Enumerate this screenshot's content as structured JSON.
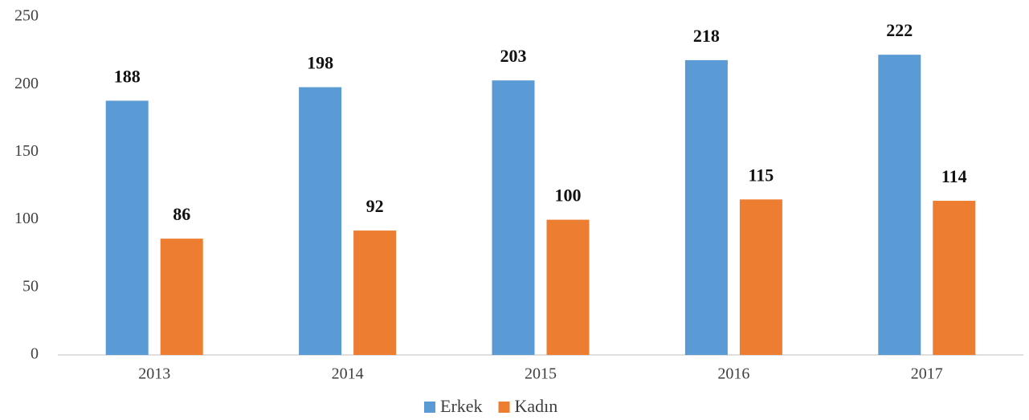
{
  "chart_data": {
    "type": "bar",
    "categories": [
      "2013",
      "2014",
      "2015",
      "2016",
      "2017"
    ],
    "series": [
      {
        "name": "Erkek",
        "color": "#5b9bd5",
        "values": [
          188,
          198,
          203,
          218,
          222
        ]
      },
      {
        "name": "Kadın",
        "color": "#ed7d31",
        "values": [
          86,
          92,
          100,
          115,
          114
        ]
      }
    ],
    "ylim": [
      0,
      250
    ],
    "yticks": [
      0,
      50,
      100,
      150,
      200,
      250
    ],
    "grid": false,
    "legend": "bottom"
  }
}
